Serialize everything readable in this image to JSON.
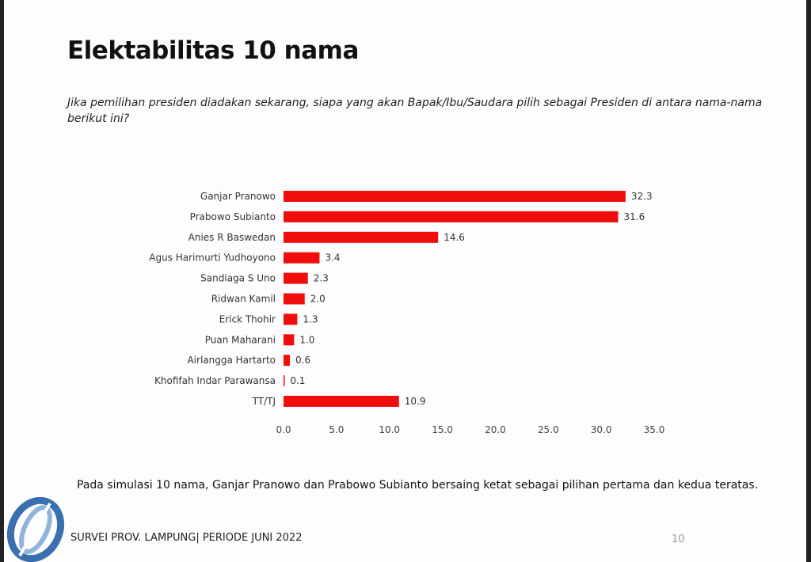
{
  "slide": {
    "title": "Elektabilitas 10 nama",
    "question": "Jika pemilihan presiden diadakan sekarang, siapa yang akan Bapak/Ibu/Saudara pilih sebagai Presiden di antara nama-nama berikut ini?",
    "note": "Pada simulasi 10 nama, Ganjar Pranowo dan Prabowo Subianto bersaing ketat sebagai pilihan pertama dan kedua teratas.",
    "footer": "SURVEI PROV. LAMPUNG| PERIODE JUNI 2022",
    "page_number": "10"
  },
  "chart_data": {
    "type": "bar",
    "orientation": "horizontal",
    "title": "",
    "xlabel": "",
    "ylabel": "",
    "xlim": [
      0,
      35
    ],
    "grid": false,
    "categories": [
      "Ganjar Pranowo",
      "Prabowo Subianto",
      "Anies R Baswedan",
      "Agus Harimurti Yudhoyono",
      "Sandiaga S Uno",
      "Ridwan Kamil",
      "Erick Thohir",
      "Puan Maharani",
      "Airlangga Hartarto",
      "Khofifah Indar Parawansa",
      "TT/TJ"
    ],
    "values": [
      32.3,
      31.6,
      14.6,
      3.4,
      2.3,
      2.0,
      1.3,
      1.0,
      0.6,
      0.1,
      10.9
    ],
    "value_labels": [
      "32.3",
      "31.6",
      "14.6",
      "3.4",
      "2.3",
      "2.0",
      "1.3",
      "1.0",
      "0.6",
      "0.1",
      "10.9"
    ],
    "xticks": [
      "0.0",
      "5.0",
      "10.0",
      "15.0",
      "20.0",
      "25.0",
      "30.0",
      "35.0"
    ],
    "color": "#f20d0d"
  }
}
